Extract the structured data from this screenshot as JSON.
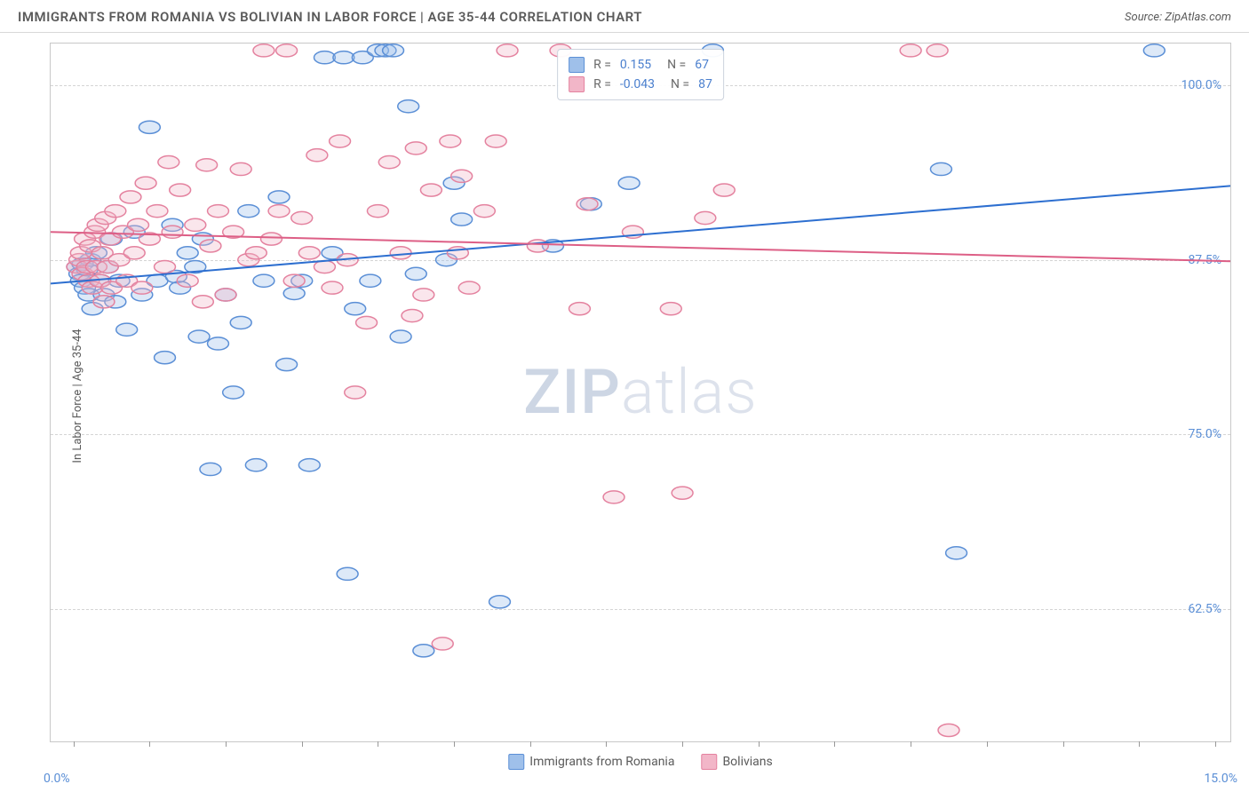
{
  "header": {
    "title": "IMMIGRANTS FROM ROMANIA VS BOLIVIAN IN LABOR FORCE | AGE 35-44 CORRELATION CHART",
    "source": "Source: ZipAtlas.com"
  },
  "chart": {
    "type": "scatter-with-regression",
    "ylabel": "In Labor Force | Age 35-44",
    "background_color": "#ffffff",
    "plot_border_color": "#c8c8c8",
    "grid_color": "#d4d4d4",
    "font_family": "Arial",
    "title_fontsize": 15,
    "title_color": "#5a5a5a",
    "label_fontsize": 13,
    "tick_fontsize": 14,
    "tick_color": "#5b8fd6",
    "xlim": [
      -0.3,
      15.2
    ],
    "ylim": [
      53,
      103
    ],
    "y_ticks": [
      62.5,
      75.0,
      87.5,
      100.0
    ],
    "y_tick_labels": [
      "62.5%",
      "75.0%",
      "87.5%",
      "100.0%"
    ],
    "x_ticks": [
      0,
      1,
      2,
      3,
      4,
      5,
      6,
      7,
      8,
      9,
      10,
      11,
      12,
      13,
      14,
      15
    ],
    "x_lim_labels": {
      "min": "0.0%",
      "max": "15.0%"
    },
    "marker_radius": 9,
    "marker_stroke_width": 1.5,
    "marker_fill_opacity": 0.35,
    "line_width": 2,
    "watermark": {
      "text1": "ZIP",
      "text2": "atlas"
    },
    "series": [
      {
        "name": "Immigrants from Romania",
        "marker_fill": "#9fc0ea",
        "marker_stroke": "#5b8fd6",
        "line_color": "#2d6fd0",
        "R": "0.155",
        "N": "67",
        "regression": {
          "x1": -0.3,
          "y1": 85.8,
          "x2": 15.2,
          "y2": 92.8
        },
        "points": [
          [
            0.05,
            87
          ],
          [
            0.08,
            86.5
          ],
          [
            0.1,
            86
          ],
          [
            0.12,
            87.2
          ],
          [
            0.15,
            85.5
          ],
          [
            0.18,
            86.8
          ],
          [
            0.2,
            85
          ],
          [
            0.22,
            87.5
          ],
          [
            0.25,
            84
          ],
          [
            0.3,
            88
          ],
          [
            0.35,
            86
          ],
          [
            0.4,
            85
          ],
          [
            0.45,
            87
          ],
          [
            0.5,
            89
          ],
          [
            0.55,
            84.5
          ],
          [
            0.6,
            86
          ],
          [
            0.7,
            82.5
          ],
          [
            0.8,
            89.5
          ],
          [
            0.9,
            85
          ],
          [
            1.0,
            97
          ],
          [
            1.1,
            86
          ],
          [
            1.2,
            80.5
          ],
          [
            1.3,
            90
          ],
          [
            1.35,
            86.3
          ],
          [
            1.4,
            85.5
          ],
          [
            1.5,
            88
          ],
          [
            1.6,
            87
          ],
          [
            1.65,
            82
          ],
          [
            1.7,
            89
          ],
          [
            1.8,
            72.5
          ],
          [
            1.9,
            81.5
          ],
          [
            2.0,
            85
          ],
          [
            2.1,
            78
          ],
          [
            2.2,
            83
          ],
          [
            2.3,
            91
          ],
          [
            2.4,
            72.8
          ],
          [
            2.5,
            86
          ],
          [
            2.7,
            92
          ],
          [
            2.8,
            80
          ],
          [
            2.9,
            85.1
          ],
          [
            3.0,
            86
          ],
          [
            3.1,
            72.8
          ],
          [
            3.3,
            102
          ],
          [
            3.4,
            88
          ],
          [
            3.55,
            102
          ],
          [
            3.6,
            65
          ],
          [
            3.7,
            84
          ],
          [
            3.8,
            102
          ],
          [
            3.9,
            86
          ],
          [
            4.0,
            102.5
          ],
          [
            4.1,
            102.5
          ],
          [
            4.2,
            102.5
          ],
          [
            4.3,
            82
          ],
          [
            4.4,
            98.5
          ],
          [
            4.5,
            86.5
          ],
          [
            4.6,
            59.5
          ],
          [
            4.9,
            87.5
          ],
          [
            5.0,
            93
          ],
          [
            5.1,
            90.4
          ],
          [
            5.6,
            63
          ],
          [
            6.3,
            88.5
          ],
          [
            6.8,
            91.5
          ],
          [
            7.3,
            93
          ],
          [
            8.4,
            102.5
          ],
          [
            11.4,
            94
          ],
          [
            11.6,
            66.5
          ],
          [
            14.2,
            102.5
          ]
        ]
      },
      {
        "name": "Bolivians",
        "marker_fill": "#f2b6c8",
        "marker_stroke": "#e4829f",
        "line_color": "#dd5f86",
        "R": "-0.043",
        "N": "87",
        "regression": {
          "x1": -0.3,
          "y1": 89.5,
          "x2": 15.2,
          "y2": 87.4
        },
        "points": [
          [
            0.05,
            87
          ],
          [
            0.08,
            87.5
          ],
          [
            0.1,
            88
          ],
          [
            0.12,
            86.5
          ],
          [
            0.15,
            89
          ],
          [
            0.18,
            87
          ],
          [
            0.2,
            86
          ],
          [
            0.22,
            88.5
          ],
          [
            0.25,
            85.5
          ],
          [
            0.28,
            89.5
          ],
          [
            0.3,
            87
          ],
          [
            0.32,
            90
          ],
          [
            0.35,
            86
          ],
          [
            0.38,
            88
          ],
          [
            0.4,
            84.5
          ],
          [
            0.42,
            90.5
          ],
          [
            0.45,
            87
          ],
          [
            0.48,
            89
          ],
          [
            0.5,
            85.5
          ],
          [
            0.55,
            91
          ],
          [
            0.6,
            87.5
          ],
          [
            0.65,
            89.5
          ],
          [
            0.7,
            86
          ],
          [
            0.75,
            92
          ],
          [
            0.8,
            88
          ],
          [
            0.85,
            90
          ],
          [
            0.9,
            85.5
          ],
          [
            0.95,
            93
          ],
          [
            1.0,
            89
          ],
          [
            1.1,
            91
          ],
          [
            1.2,
            87
          ],
          [
            1.25,
            94.5
          ],
          [
            1.3,
            89.5
          ],
          [
            1.4,
            92.5
          ],
          [
            1.5,
            86
          ],
          [
            1.6,
            90
          ],
          [
            1.7,
            84.5
          ],
          [
            1.75,
            94.3
          ],
          [
            1.8,
            88.5
          ],
          [
            1.9,
            91
          ],
          [
            2.0,
            85
          ],
          [
            2.1,
            89.5
          ],
          [
            2.2,
            94
          ],
          [
            2.3,
            87.5
          ],
          [
            2.4,
            88
          ],
          [
            2.5,
            102.5
          ],
          [
            2.6,
            89
          ],
          [
            2.7,
            91
          ],
          [
            2.8,
            102.5
          ],
          [
            2.9,
            86
          ],
          [
            3.0,
            90.5
          ],
          [
            3.1,
            88
          ],
          [
            3.2,
            95
          ],
          [
            3.3,
            87
          ],
          [
            3.4,
            85.5
          ],
          [
            3.5,
            96
          ],
          [
            3.6,
            87.5
          ],
          [
            3.7,
            78
          ],
          [
            3.85,
            83
          ],
          [
            4.0,
            91
          ],
          [
            4.15,
            94.5
          ],
          [
            4.3,
            88
          ],
          [
            4.45,
            83.5
          ],
          [
            4.5,
            95.5
          ],
          [
            4.6,
            85
          ],
          [
            4.7,
            92.5
          ],
          [
            4.85,
            60
          ],
          [
            4.95,
            96
          ],
          [
            5.05,
            88
          ],
          [
            5.1,
            93.5
          ],
          [
            5.2,
            85.5
          ],
          [
            5.4,
            91
          ],
          [
            5.55,
            96
          ],
          [
            5.7,
            102.5
          ],
          [
            6.1,
            88.5
          ],
          [
            6.4,
            102.5
          ],
          [
            6.65,
            84
          ],
          [
            6.75,
            91.5
          ],
          [
            7.1,
            70.5
          ],
          [
            7.35,
            89.5
          ],
          [
            7.85,
            84
          ],
          [
            8.0,
            70.8
          ],
          [
            8.3,
            90.5
          ],
          [
            8.55,
            92.5
          ],
          [
            11.0,
            102.5
          ],
          [
            11.35,
            102.5
          ],
          [
            11.5,
            53.8
          ]
        ]
      }
    ],
    "legend_bottom_position": "bottom-center",
    "legend_stats_position": "top-center"
  }
}
